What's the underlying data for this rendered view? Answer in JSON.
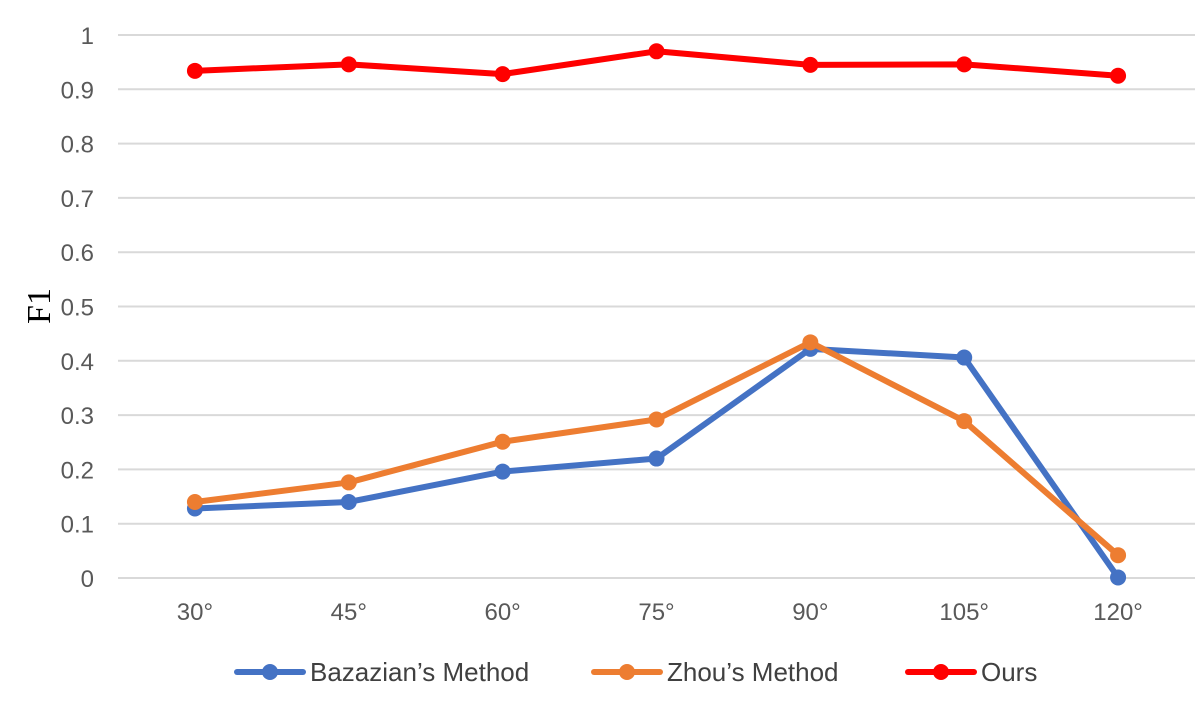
{
  "chart_data": {
    "type": "line",
    "title": "",
    "xlabel": "",
    "ylabel": "F1",
    "categories": [
      "30°",
      "45°",
      "60°",
      "75°",
      "90°",
      "105°",
      "120°"
    ],
    "ylim": [
      0,
      1
    ],
    "yticks": [
      "0",
      "0.1",
      "0.2",
      "0.3",
      "0.4",
      "0.5",
      "0.6",
      "0.7",
      "0.8",
      "0.9",
      "1"
    ],
    "grid": true,
    "legend_position": "bottom",
    "series": [
      {
        "name": "Bazazian’s Method",
        "color": "#4472C4",
        "values": [
          0.128,
          0.14,
          0.196,
          0.22,
          0.422,
          0.406,
          0.001
        ]
      },
      {
        "name": "Zhou’s Method",
        "color": "#ED7D31",
        "values": [
          0.14,
          0.176,
          0.251,
          0.292,
          0.434,
          0.289,
          0.042
        ]
      },
      {
        "name": "Ours",
        "color": "#FF0000",
        "values": [
          0.934,
          0.946,
          0.928,
          0.97,
          0.945,
          0.946,
          0.925
        ]
      }
    ]
  }
}
